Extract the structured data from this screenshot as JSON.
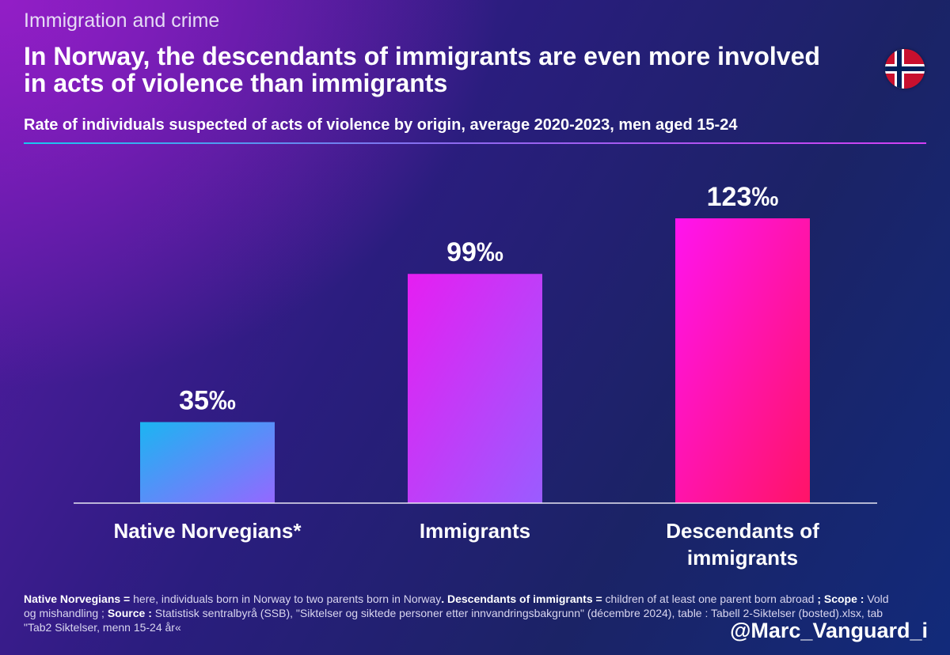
{
  "header": {
    "kicker": "Immigration and crime",
    "headline": "In Norway, the descendants of immigrants are even more involved in acts of violence than immigrants",
    "subtitle": "Rate of individuals suspected of acts of violence by origin, average 2020-2023, men aged 15-24"
  },
  "flag": {
    "icon": "norway-flag-icon",
    "colors": {
      "red": "#c8102e",
      "white": "#ffffff",
      "blue": "#00205b"
    }
  },
  "chart_data": {
    "type": "bar",
    "title": "Rate of individuals suspected of acts of violence by origin, average 2020-2023, men aged 15-24",
    "categories": [
      "Native Norvegians*",
      "Immigrants",
      "Descendants of immigrants"
    ],
    "category_lines": [
      [
        "Native Norvegians*"
      ],
      [
        "Immigrants"
      ],
      [
        "Descendants of",
        "immigrants"
      ]
    ],
    "values": [
      35,
      99,
      123
    ],
    "value_labels": [
      "35‰",
      "99‰",
      "123‰"
    ],
    "unit": "‰",
    "ylim": [
      0,
      123
    ],
    "grid": false,
    "legend": "none",
    "bar_colors": [
      [
        "#1bb5f2",
        "#9468ff"
      ],
      [
        "#e61ef2",
        "#9a5cff"
      ],
      [
        "#ff14ef",
        "#ff1467"
      ]
    ]
  },
  "footnote": {
    "def1_term": "Native Norvegians =",
    "def1_text": " here, individuals born in Norway to two parents born in Norway",
    "dot": ". ",
    "def2_term": "Descendants of immigrants =",
    "def2_text": " children of at least one parent born abroad ",
    "scope_term": "; Scope :",
    "scope_text": " Vold og mishandling ; ",
    "source_term": "Source :",
    "source_text": " Statistisk sentralbyrå (SSB), \"Siktelser og siktede personer etter innvandringsbakgrunn\" (décembre 2024), table : Tabell 2-Siktelser (bosted).xlsx, tab \"Tab2 Siktelser, menn 15-24 år«"
  },
  "handle": "@Marc_Vanguard_i"
}
